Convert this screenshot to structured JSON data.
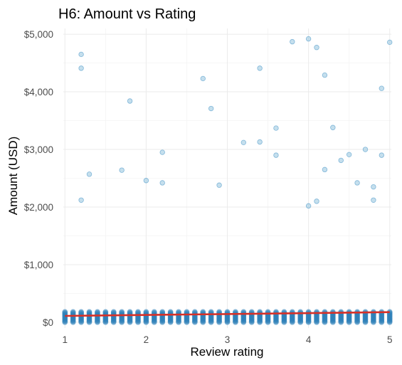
{
  "chart_data": {
    "type": "scatter",
    "title": "H6: Amount vs Rating",
    "xlabel": "Review rating",
    "ylabel": "Amount (USD)",
    "xlim": [
      0.98,
      5.02
    ],
    "ylim": [
      -100,
      5100
    ],
    "x_ticks": [
      1,
      2,
      3,
      4,
      5
    ],
    "x_tick_labels": [
      "1",
      "2",
      "3",
      "4",
      "5"
    ],
    "y_ticks": [
      0,
      1000,
      2000,
      3000,
      4000,
      5000
    ],
    "y_tick_labels": [
      "$0",
      "$1,000",
      "$2,000",
      "$3,000",
      "$4,000",
      "$5,000"
    ],
    "grid": true,
    "legend": "none",
    "colors": {
      "point_fill": "#9ecae1",
      "point_stroke": "#4292c6",
      "dense_point": "#2c7fb8",
      "trend_line": "#d73027"
    },
    "dense_band": {
      "x_values": [
        1.0,
        1.1,
        1.2,
        1.3,
        1.4,
        1.5,
        1.6,
        1.7,
        1.8,
        1.9,
        2.0,
        2.1,
        2.2,
        2.3,
        2.4,
        2.5,
        2.6,
        2.7,
        2.8,
        2.9,
        3.0,
        3.1,
        3.2,
        3.3,
        3.4,
        3.5,
        3.6,
        3.7,
        3.8,
        3.9,
        4.0,
        4.1,
        4.2,
        4.3,
        4.4,
        4.5,
        4.6,
        4.7,
        4.8,
        4.9,
        5.0
      ],
      "y_range": [
        0,
        180
      ]
    },
    "outliers": [
      {
        "x": 1.2,
        "y": 4650
      },
      {
        "x": 1.2,
        "y": 4410
      },
      {
        "x": 1.3,
        "y": 2570
      },
      {
        "x": 1.2,
        "y": 2120
      },
      {
        "x": 1.7,
        "y": 2640
      },
      {
        "x": 1.8,
        "y": 3840
      },
      {
        "x": 2.0,
        "y": 2460
      },
      {
        "x": 2.2,
        "y": 2950
      },
      {
        "x": 2.2,
        "y": 2420
      },
      {
        "x": 2.7,
        "y": 4230
      },
      {
        "x": 2.8,
        "y": 3710
      },
      {
        "x": 2.9,
        "y": 2380
      },
      {
        "x": 3.2,
        "y": 3120
      },
      {
        "x": 3.4,
        "y": 4410
      },
      {
        "x": 3.4,
        "y": 3130
      },
      {
        "x": 3.6,
        "y": 3370
      },
      {
        "x": 3.6,
        "y": 2900
      },
      {
        "x": 3.8,
        "y": 4870
      },
      {
        "x": 4.0,
        "y": 4920
      },
      {
        "x": 4.1,
        "y": 4770
      },
      {
        "x": 4.0,
        "y": 2020
      },
      {
        "x": 4.1,
        "y": 2100
      },
      {
        "x": 4.2,
        "y": 4290
      },
      {
        "x": 4.2,
        "y": 2650
      },
      {
        "x": 4.3,
        "y": 3380
      },
      {
        "x": 4.4,
        "y": 2810
      },
      {
        "x": 4.5,
        "y": 2910
      },
      {
        "x": 4.6,
        "y": 2420
      },
      {
        "x": 4.7,
        "y": 3000
      },
      {
        "x": 4.8,
        "y": 2350
      },
      {
        "x": 4.8,
        "y": 2120
      },
      {
        "x": 4.9,
        "y": 4060
      },
      {
        "x": 4.9,
        "y": 2900
      },
      {
        "x": 5.0,
        "y": 4860
      }
    ],
    "trend_line": {
      "x": [
        1.0,
        5.0
      ],
      "y": [
        110,
        175
      ]
    }
  }
}
